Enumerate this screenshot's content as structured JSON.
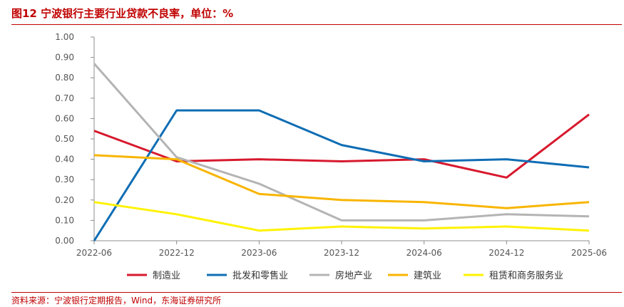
{
  "header": {
    "title": "图12  宁波银行主要行业贷款不良率，单位：%"
  },
  "footer": {
    "source": "资料来源：宁波银行定期报告，Wind，东海证券研究所"
  },
  "chart_data": {
    "type": "line",
    "title": "图12  宁波银行主要行业贷款不良率，单位：%",
    "xlabel": "",
    "ylabel": "",
    "x": [
      "2022-06",
      "2022-12",
      "2023-06",
      "2023-12",
      "2024-06",
      "2024-12",
      "2025-06"
    ],
    "ylim": [
      0,
      1.0
    ],
    "yticks": [
      "0.00",
      "0.10",
      "0.20",
      "0.30",
      "0.40",
      "0.50",
      "0.60",
      "0.70",
      "0.80",
      "0.90",
      "1.00"
    ],
    "grid": false,
    "legend_position": "bottom",
    "series": [
      {
        "name": "制造业",
        "color": "#d7192e",
        "values": [
          0.54,
          0.39,
          0.4,
          0.39,
          0.4,
          0.31,
          0.62
        ]
      },
      {
        "name": "批发和零售业",
        "color": "#0e6db4",
        "values": [
          0.0,
          0.64,
          0.64,
          0.47,
          0.39,
          0.4,
          0.36
        ]
      },
      {
        "name": "房地产业",
        "color": "#b4b4b4",
        "values": [
          0.87,
          0.41,
          0.28,
          0.1,
          0.1,
          0.13,
          0.12
        ]
      },
      {
        "name": "建筑业",
        "color": "#f8b500",
        "values": [
          0.42,
          0.4,
          0.23,
          0.2,
          0.19,
          0.16,
          0.19
        ]
      },
      {
        "name": "租赁和商务服务业",
        "color": "#fff200",
        "values": [
          0.19,
          0.13,
          0.05,
          0.07,
          0.06,
          0.07,
          0.05
        ]
      }
    ]
  }
}
